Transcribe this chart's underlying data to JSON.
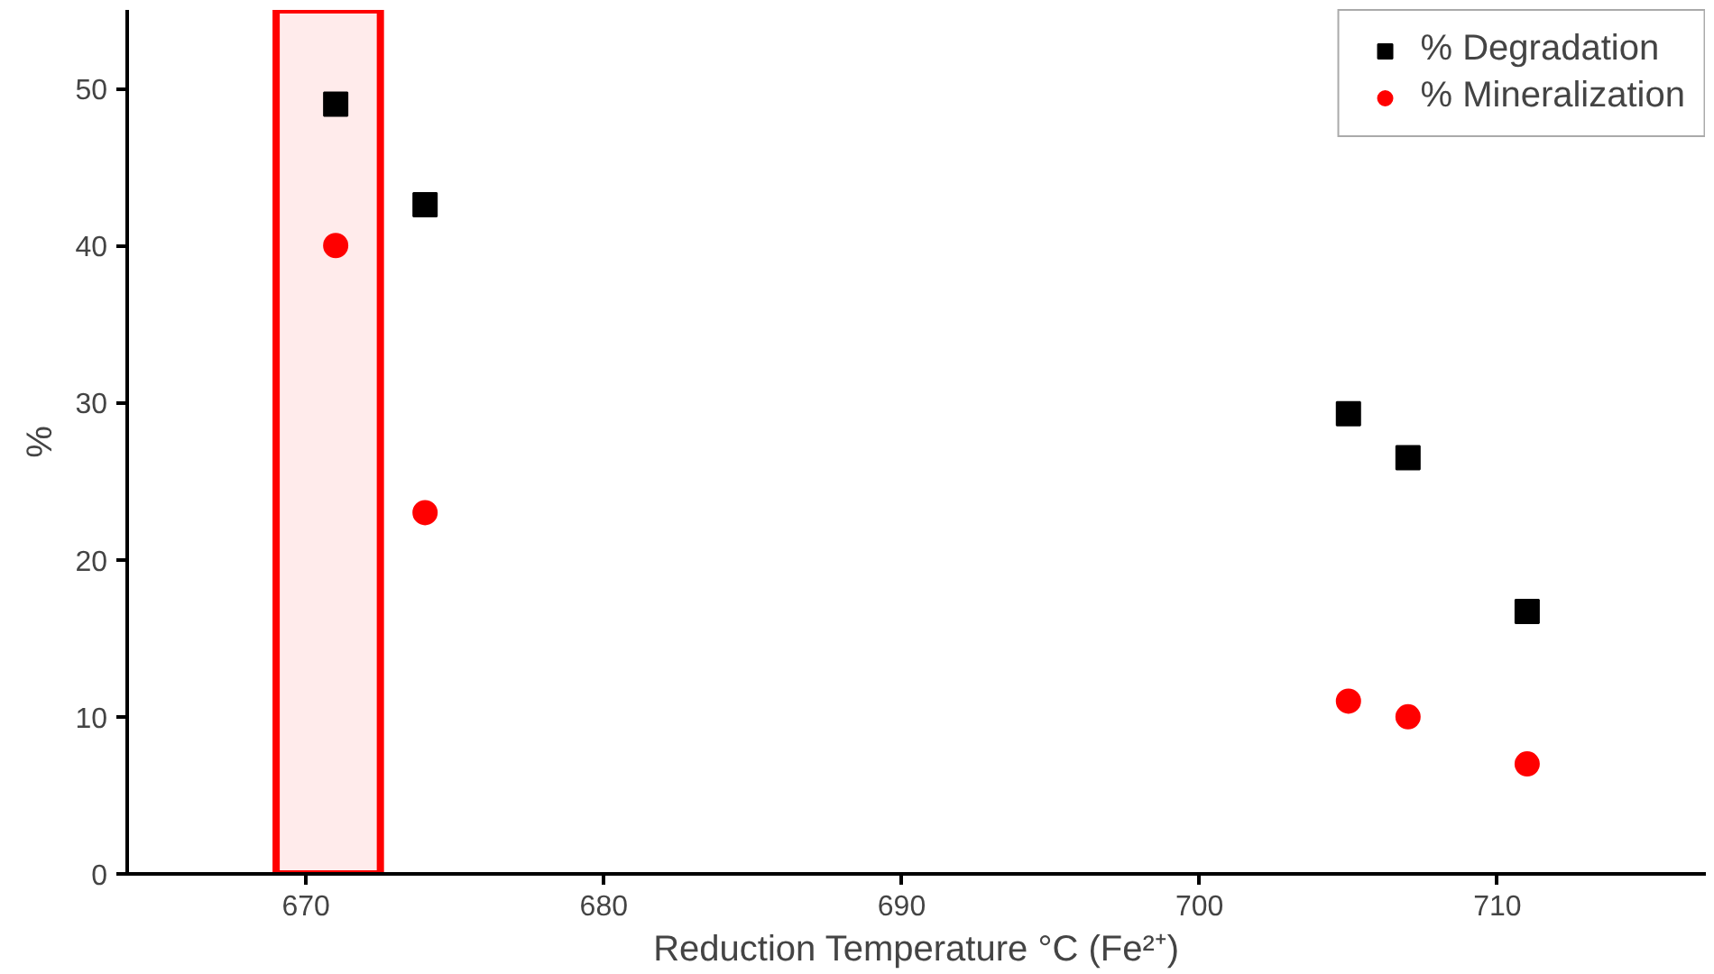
{
  "chart_data": {
    "type": "scatter",
    "xlabel": "Reduction Temperature °C (Fe²⁺)",
    "ylabel": "%",
    "xlim": [
      664,
      717
    ],
    "ylim": [
      0,
      55
    ],
    "xticks": [
      670,
      680,
      690,
      700,
      710
    ],
    "yticks": [
      0,
      10,
      20,
      30,
      40,
      50
    ],
    "grid": false,
    "legend": "top right",
    "bands": [
      {
        "axis": "x",
        "from": 669,
        "to": 672.5,
        "color": "#ff0000"
      }
    ],
    "series": [
      {
        "name": "% Degradation",
        "color": "#000000",
        "marker": "square",
        "x": [
          671,
          674,
          705,
          707,
          711
        ],
        "values": [
          49,
          42.6,
          29.3,
          26.5,
          16.7
        ]
      },
      {
        "name": "% Mineralization",
        "color": "#ff0000",
        "marker": "circle",
        "x": [
          671,
          674,
          705,
          707,
          711
        ],
        "values": [
          40,
          23,
          11,
          10,
          7
        ]
      }
    ]
  }
}
